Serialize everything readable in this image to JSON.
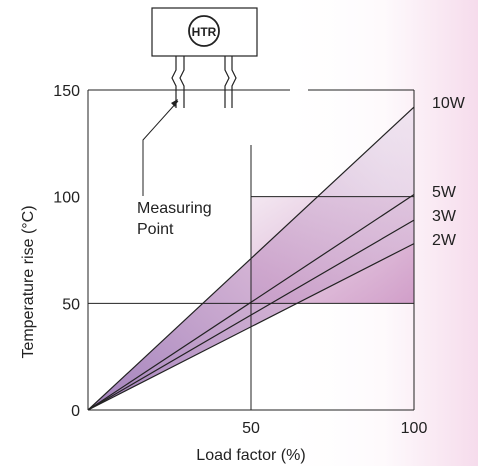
{
  "chart_data": {
    "type": "line",
    "xlabel": "Load factor (%)",
    "ylabel": "Temperature rise (°C)",
    "xlim": [
      0,
      100
    ],
    "ylim": [
      0,
      150
    ],
    "x_ticks": [
      "50",
      "100"
    ],
    "y_ticks": [
      "0",
      "50",
      "100",
      "150"
    ],
    "grid": false,
    "legend": "right (inline series labels)",
    "series": [
      {
        "name": "10W",
        "x": [
          0,
          100
        ],
        "y": [
          0,
          142
        ]
      },
      {
        "name": "5W",
        "x": [
          0,
          100
        ],
        "y": [
          0,
          101
        ]
      },
      {
        "name": "3W",
        "x": [
          0,
          100
        ],
        "y": [
          0,
          89
        ]
      },
      {
        "name": "2W",
        "x": [
          0,
          100
        ],
        "y": [
          0,
          78
        ]
      }
    ],
    "reference_lines": [
      {
        "axis": "y",
        "value": 50
      },
      {
        "axis": "x",
        "value": 50
      },
      {
        "axis": "y",
        "value": 100,
        "from_x": 50,
        "to_x": 100
      }
    ],
    "annotation": {
      "component_label": "HTR",
      "measuring_point": [
        "Measuring",
        "Point"
      ]
    },
    "colors": {
      "background_panel": "#f6dcec",
      "fill_light": "#d9c8e2",
      "fill_mid": "#c18fbf",
      "fill_dark": "#b06aa6",
      "line": "#222222"
    }
  }
}
